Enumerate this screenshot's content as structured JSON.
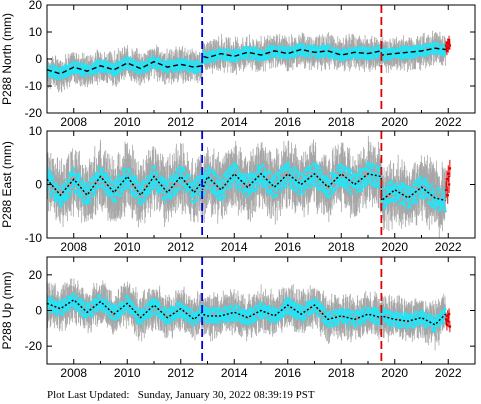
{
  "colors": {
    "error_bars": "#a6a6a6",
    "data_points": "#27e3f5",
    "recent_points": "#e00000",
    "model_line": "#000000",
    "event_line_1": "#0000e0",
    "event_line_2": "#e00000",
    "frame": "#000000"
  },
  "footer": {
    "label": "Plot Last Updated:",
    "value": "Sunday, January 30, 2022 08:39:19 PST"
  },
  "chart_data": [
    {
      "type": "scatter",
      "ylabel": "P288 North (mm)",
      "xlim": [
        2007.0,
        2023.0
      ],
      "ylim": [
        -20,
        20
      ],
      "xticks": [
        2008,
        2010,
        2012,
        2014,
        2016,
        2018,
        2020,
        2022
      ],
      "yticks": [
        -20,
        -10,
        0,
        10,
        20
      ],
      "vertical_lines": [
        {
          "x": 2012.8,
          "color": "blue",
          "style": "dashed"
        },
        {
          "x": 2019.5,
          "color": "red",
          "style": "dashed"
        }
      ],
      "series": [
        {
          "kind": "observations",
          "x": [
            2007.0,
            2007.5,
            2008.0,
            2008.5,
            2009.0,
            2009.5,
            2010.0,
            2010.5,
            2011.0,
            2011.5,
            2012.0,
            2012.5,
            2012.79,
            2012.81,
            2013.0,
            2013.5,
            2014.0,
            2014.5,
            2015.0,
            2015.5,
            2016.0,
            2016.5,
            2017.0,
            2017.5,
            2018.0,
            2018.5,
            2019.0,
            2019.49,
            2019.51,
            2020.0,
            2020.5,
            2021.0,
            2021.5,
            2021.9
          ],
          "y": [
            -4,
            -5.5,
            -3,
            -4.5,
            -2.5,
            -4,
            -1.5,
            -3.5,
            -1,
            -3,
            -2,
            -3,
            -2.5,
            1,
            0.5,
            2,
            1,
            2.5,
            1.5,
            3,
            2,
            3.5,
            2.5,
            3,
            1.5,
            2.5,
            2,
            3,
            1.5,
            2,
            2.5,
            3,
            4,
            3.5
          ],
          "y_error": 4
        },
        {
          "kind": "model",
          "x": [
            2007.0,
            2007.5,
            2008.0,
            2008.5,
            2009.0,
            2009.5,
            2010.0,
            2010.5,
            2011.0,
            2011.5,
            2012.0,
            2012.5,
            2012.79,
            2012.81,
            2013.0,
            2013.5,
            2014.0,
            2014.5,
            2015.0,
            2015.5,
            2016.0,
            2016.5,
            2017.0,
            2017.5,
            2018.0,
            2018.5,
            2019.0,
            2019.49,
            2019.51,
            2020.0,
            2020.5,
            2021.0,
            2021.5,
            2021.9
          ],
          "y": [
            -4,
            -5.5,
            -3,
            -4.5,
            -2.5,
            -4,
            -1.5,
            -3.5,
            -1,
            -3,
            -2,
            -3,
            -2.5,
            1,
            0.5,
            2,
            1,
            2.5,
            1.5,
            3,
            2,
            3.5,
            2.5,
            3,
            1.5,
            2.5,
            2,
            3,
            1.5,
            2,
            2.5,
            3,
            4,
            3.5
          ]
        },
        {
          "kind": "recent",
          "x": [
            2021.92,
            2021.95,
            2021.98,
            2022.0,
            2022.03,
            2022.06
          ],
          "y": [
            5,
            3,
            6,
            4,
            7,
            5
          ]
        }
      ]
    },
    {
      "type": "scatter",
      "ylabel": "P288 East (mm)",
      "xlim": [
        2007.0,
        2023.0
      ],
      "ylim": [
        -10,
        10
      ],
      "xticks": [
        2008,
        2010,
        2012,
        2014,
        2016,
        2018,
        2020,
        2022
      ],
      "yticks": [
        -10,
        0,
        10
      ],
      "vertical_lines": [
        {
          "x": 2012.8,
          "color": "blue",
          "style": "dashed"
        },
        {
          "x": 2019.5,
          "color": "red",
          "style": "dashed"
        }
      ],
      "series": [
        {
          "kind": "observations",
          "x": [
            2007.0,
            2007.5,
            2008.0,
            2008.5,
            2009.0,
            2009.5,
            2010.0,
            2010.5,
            2011.0,
            2011.5,
            2012.0,
            2012.5,
            2012.79,
            2012.81,
            2013.0,
            2013.5,
            2014.0,
            2014.5,
            2015.0,
            2015.5,
            2016.0,
            2016.5,
            2017.0,
            2017.5,
            2018.0,
            2018.5,
            2019.0,
            2019.49,
            2019.51,
            2020.0,
            2020.5,
            2021.0,
            2021.5,
            2021.9
          ],
          "y": [
            1,
            -2,
            1,
            -2,
            1.5,
            -1.5,
            1.5,
            -2,
            1.5,
            -1.5,
            1.5,
            -1.5,
            0.5,
            -1,
            1.5,
            -1,
            2,
            -0.5,
            2,
            -0.5,
            2,
            0,
            2,
            -0.5,
            2,
            0,
            2,
            1.5,
            -3,
            -1,
            -2.5,
            -0.5,
            -2.5,
            -3
          ],
          "y_error": 4
        },
        {
          "kind": "model",
          "x": [
            2007.0,
            2007.5,
            2008.0,
            2008.5,
            2009.0,
            2009.5,
            2010.0,
            2010.5,
            2011.0,
            2011.5,
            2012.0,
            2012.5,
            2012.79,
            2012.81,
            2013.0,
            2013.5,
            2014.0,
            2014.5,
            2015.0,
            2015.5,
            2016.0,
            2016.5,
            2017.0,
            2017.5,
            2018.0,
            2018.5,
            2019.0,
            2019.49,
            2019.51,
            2020.0,
            2020.5,
            2021.0,
            2021.5,
            2021.9
          ],
          "y": [
            1,
            -2,
            1,
            -2,
            1.5,
            -1.5,
            1.5,
            -2,
            1.5,
            -1.5,
            1.5,
            -1.5,
            0.5,
            -1,
            1.5,
            -1,
            2,
            -0.5,
            2,
            -0.5,
            2,
            0,
            2,
            -0.5,
            2,
            0,
            2,
            1.5,
            -3,
            -1,
            -2.5,
            -0.5,
            -2.5,
            -3
          ]
        },
        {
          "kind": "recent",
          "x": [
            2021.92,
            2021.95,
            2021.98,
            2022.0,
            2022.03,
            2022.06
          ],
          "y": [
            -1,
            1,
            -2,
            2,
            0,
            3
          ]
        }
      ]
    },
    {
      "type": "scatter",
      "ylabel": "P288 Up (mm)",
      "xlim": [
        2007.0,
        2023.0
      ],
      "ylim": [
        -30,
        30
      ],
      "xticks": [
        2008,
        2010,
        2012,
        2014,
        2016,
        2018,
        2020,
        2022
      ],
      "yticks": [
        -20,
        0,
        20
      ],
      "vertical_lines": [
        {
          "x": 2012.8,
          "color": "blue",
          "style": "dashed"
        },
        {
          "x": 2019.5,
          "color": "red",
          "style": "dashed"
        }
      ],
      "series": [
        {
          "kind": "observations",
          "x": [
            2007.0,
            2007.5,
            2008.0,
            2008.5,
            2009.0,
            2009.5,
            2010.0,
            2010.5,
            2011.0,
            2011.5,
            2012.0,
            2012.5,
            2012.79,
            2012.81,
            2013.0,
            2013.5,
            2014.0,
            2014.5,
            2015.0,
            2015.5,
            2016.0,
            2016.5,
            2017.0,
            2017.5,
            2018.0,
            2018.5,
            2019.0,
            2019.49,
            2019.51,
            2020.0,
            2020.5,
            2021.0,
            2021.5,
            2021.9
          ],
          "y": [
            4,
            1,
            6,
            -1,
            5,
            -2,
            4,
            -4,
            3,
            -4,
            1,
            -5,
            -1,
            -2,
            -3,
            -3,
            -1,
            -4,
            0,
            -3,
            3,
            -2,
            3,
            -5,
            -3,
            -5,
            -2,
            -4,
            -3,
            -5,
            -6,
            -4,
            -8,
            -2
          ],
          "y_error": 8
        },
        {
          "kind": "model",
          "x": [
            2007.0,
            2007.5,
            2008.0,
            2008.5,
            2009.0,
            2009.5,
            2010.0,
            2010.5,
            2011.0,
            2011.5,
            2012.0,
            2012.5,
            2012.79,
            2012.81,
            2013.0,
            2013.5,
            2014.0,
            2014.5,
            2015.0,
            2015.5,
            2016.0,
            2016.5,
            2017.0,
            2017.5,
            2018.0,
            2018.5,
            2019.0,
            2019.49,
            2019.51,
            2020.0,
            2020.5,
            2021.0,
            2021.5,
            2021.9
          ],
          "y": [
            4,
            1,
            6,
            -1,
            5,
            -2,
            4,
            -4,
            3,
            -4,
            1,
            -5,
            -1,
            -2,
            -3,
            -3,
            -1,
            -4,
            0,
            -3,
            3,
            -2,
            3,
            -5,
            -3,
            -5,
            -2,
            -4,
            -3,
            -5,
            -6,
            -4,
            -8,
            -2
          ]
        },
        {
          "kind": "recent",
          "x": [
            2021.92,
            2021.95,
            2021.98,
            2022.0,
            2022.03,
            2022.06
          ],
          "y": [
            -5,
            -8,
            -3,
            -6,
            -2,
            -9
          ]
        }
      ]
    }
  ]
}
